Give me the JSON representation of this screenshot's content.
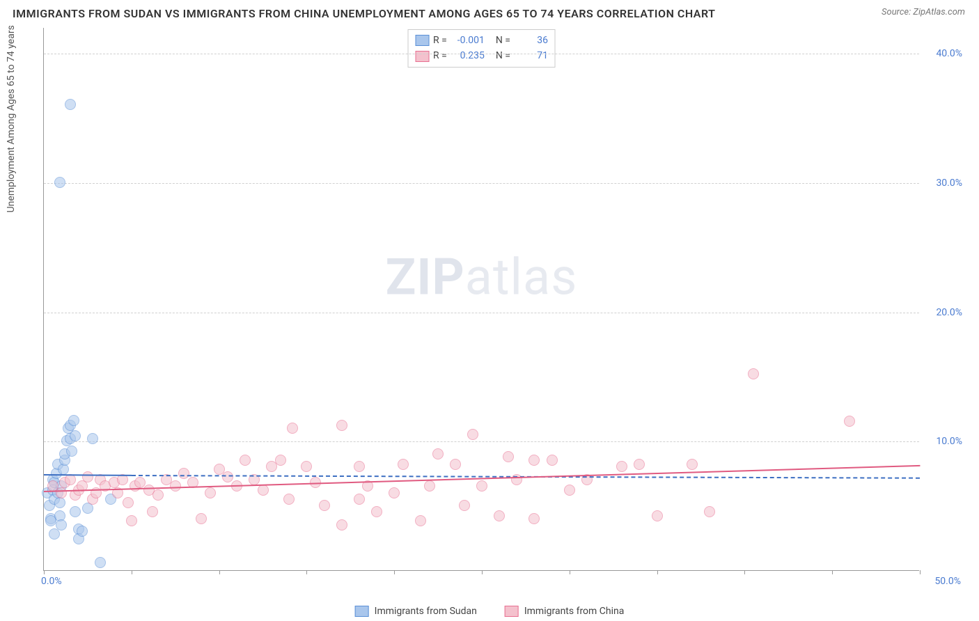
{
  "title": "IMMIGRANTS FROM SUDAN VS IMMIGRANTS FROM CHINA UNEMPLOYMENT AMONG AGES 65 TO 74 YEARS CORRELATION CHART",
  "source": "Source: ZipAtlas.com",
  "watermark_a": "ZIP",
  "watermark_b": "atlas",
  "chart": {
    "type": "scatter",
    "xlim": [
      0,
      50
    ],
    "ylim": [
      0,
      42
    ],
    "xtick_min_label": "0.0%",
    "xtick_max_label": "50.0%",
    "xtick_positions": [
      0,
      5,
      10,
      15,
      20,
      25,
      30,
      35,
      40,
      45,
      50
    ],
    "yticks": [
      {
        "v": 10,
        "label": "10.0%"
      },
      {
        "v": 20,
        "label": "20.0%"
      },
      {
        "v": 30,
        "label": "30.0%"
      },
      {
        "v": 40,
        "label": "40.0%"
      }
    ],
    "ylabel": "Unemployment Among Ages 65 to 74 years",
    "background_color": "#ffffff",
    "grid_color": "#d0d0d0",
    "marker_radius": 8,
    "marker_opacity": 0.55,
    "series": [
      {
        "name": "Immigrants from Sudan",
        "color_fill": "#a9c6ec",
        "color_stroke": "#5a8fd6",
        "R": "-0.001",
        "N": "36",
        "trend": {
          "x0": 0,
          "y0": 7.5,
          "x1": 5,
          "y1": 7.45,
          "dash_to_x": 50,
          "dash_y": 7.25,
          "color": "#3d6fc2"
        },
        "points": [
          [
            0.2,
            6.0
          ],
          [
            0.3,
            5.0
          ],
          [
            0.4,
            4.0
          ],
          [
            0.5,
            7.0
          ],
          [
            0.5,
            6.2
          ],
          [
            0.6,
            5.5
          ],
          [
            0.6,
            6.8
          ],
          [
            0.7,
            7.5
          ],
          [
            0.8,
            8.2
          ],
          [
            0.8,
            6.0
          ],
          [
            0.9,
            5.2
          ],
          [
            0.9,
            4.2
          ],
          [
            1.0,
            3.5
          ],
          [
            1.0,
            6.5
          ],
          [
            1.1,
            7.8
          ],
          [
            1.2,
            8.5
          ],
          [
            1.2,
            9.0
          ],
          [
            1.3,
            10.0
          ],
          [
            1.4,
            11.0
          ],
          [
            1.5,
            11.2
          ],
          [
            1.5,
            10.2
          ],
          [
            1.6,
            9.2
          ],
          [
            1.7,
            11.6
          ],
          [
            1.8,
            10.4
          ],
          [
            1.8,
            4.5
          ],
          [
            2.0,
            3.2
          ],
          [
            2.0,
            2.4
          ],
          [
            2.2,
            3.0
          ],
          [
            2.5,
            4.8
          ],
          [
            2.8,
            10.2
          ],
          [
            3.2,
            0.6
          ],
          [
            3.8,
            5.5
          ],
          [
            0.9,
            30.0
          ],
          [
            1.5,
            36.0
          ],
          [
            0.4,
            3.8
          ],
          [
            0.6,
            2.8
          ]
        ]
      },
      {
        "name": "Immigrants from China",
        "color_fill": "#f4c1cd",
        "color_stroke": "#e86f91",
        "R": "0.235",
        "N": "71",
        "trend": {
          "x0": 0,
          "y0": 6.2,
          "x1": 50,
          "y1": 8.2,
          "color": "#e05a80"
        },
        "points": [
          [
            0.5,
            6.5
          ],
          [
            1.0,
            6.0
          ],
          [
            1.2,
            6.8
          ],
          [
            1.5,
            7.0
          ],
          [
            1.8,
            5.8
          ],
          [
            2.0,
            6.2
          ],
          [
            2.2,
            6.5
          ],
          [
            2.5,
            7.2
          ],
          [
            2.8,
            5.5
          ],
          [
            3.0,
            6.0
          ],
          [
            3.2,
            7.0
          ],
          [
            3.5,
            6.5
          ],
          [
            4.0,
            6.8
          ],
          [
            4.2,
            6.0
          ],
          [
            4.5,
            7.0
          ],
          [
            5.0,
            3.8
          ],
          [
            5.2,
            6.5
          ],
          [
            5.5,
            6.8
          ],
          [
            6.0,
            6.2
          ],
          [
            6.5,
            5.8
          ],
          [
            7.0,
            7.0
          ],
          [
            7.5,
            6.5
          ],
          [
            8.0,
            7.5
          ],
          [
            8.5,
            6.8
          ],
          [
            9.0,
            4.0
          ],
          [
            9.5,
            6.0
          ],
          [
            10.0,
            7.8
          ],
          [
            10.5,
            7.2
          ],
          [
            11.0,
            6.5
          ],
          [
            11.5,
            8.5
          ],
          [
            12.0,
            7.0
          ],
          [
            12.5,
            6.2
          ],
          [
            13.0,
            8.0
          ],
          [
            13.5,
            8.5
          ],
          [
            14.0,
            5.5
          ],
          [
            14.2,
            11.0
          ],
          [
            15.0,
            8.0
          ],
          [
            15.5,
            6.8
          ],
          [
            16.0,
            5.0
          ],
          [
            17.0,
            11.2
          ],
          [
            17.0,
            3.5
          ],
          [
            18.0,
            5.5
          ],
          [
            18.0,
            8.0
          ],
          [
            18.5,
            6.5
          ],
          [
            19.0,
            4.5
          ],
          [
            20.0,
            6.0
          ],
          [
            20.5,
            8.2
          ],
          [
            21.5,
            3.8
          ],
          [
            22.0,
            6.5
          ],
          [
            22.5,
            9.0
          ],
          [
            23.5,
            8.2
          ],
          [
            24.0,
            5.0
          ],
          [
            24.5,
            10.5
          ],
          [
            25.0,
            6.5
          ],
          [
            26.0,
            4.2
          ],
          [
            26.5,
            8.8
          ],
          [
            27.0,
            7.0
          ],
          [
            28.0,
            8.5
          ],
          [
            28.0,
            4.0
          ],
          [
            29.0,
            8.5
          ],
          [
            30.0,
            6.2
          ],
          [
            31.0,
            7.0
          ],
          [
            33.0,
            8.0
          ],
          [
            34.0,
            8.2
          ],
          [
            35.0,
            4.2
          ],
          [
            37.0,
            8.2
          ],
          [
            38.0,
            4.5
          ],
          [
            40.5,
            15.2
          ],
          [
            46.0,
            11.5
          ],
          [
            4.8,
            5.2
          ],
          [
            6.2,
            4.5
          ]
        ]
      }
    ]
  },
  "legend_bottom": [
    {
      "label": "Immigrants from Sudan",
      "fill": "#a9c6ec",
      "stroke": "#5a8fd6"
    },
    {
      "label": "Immigrants from China",
      "fill": "#f4c1cd",
      "stroke": "#e86f91"
    }
  ]
}
